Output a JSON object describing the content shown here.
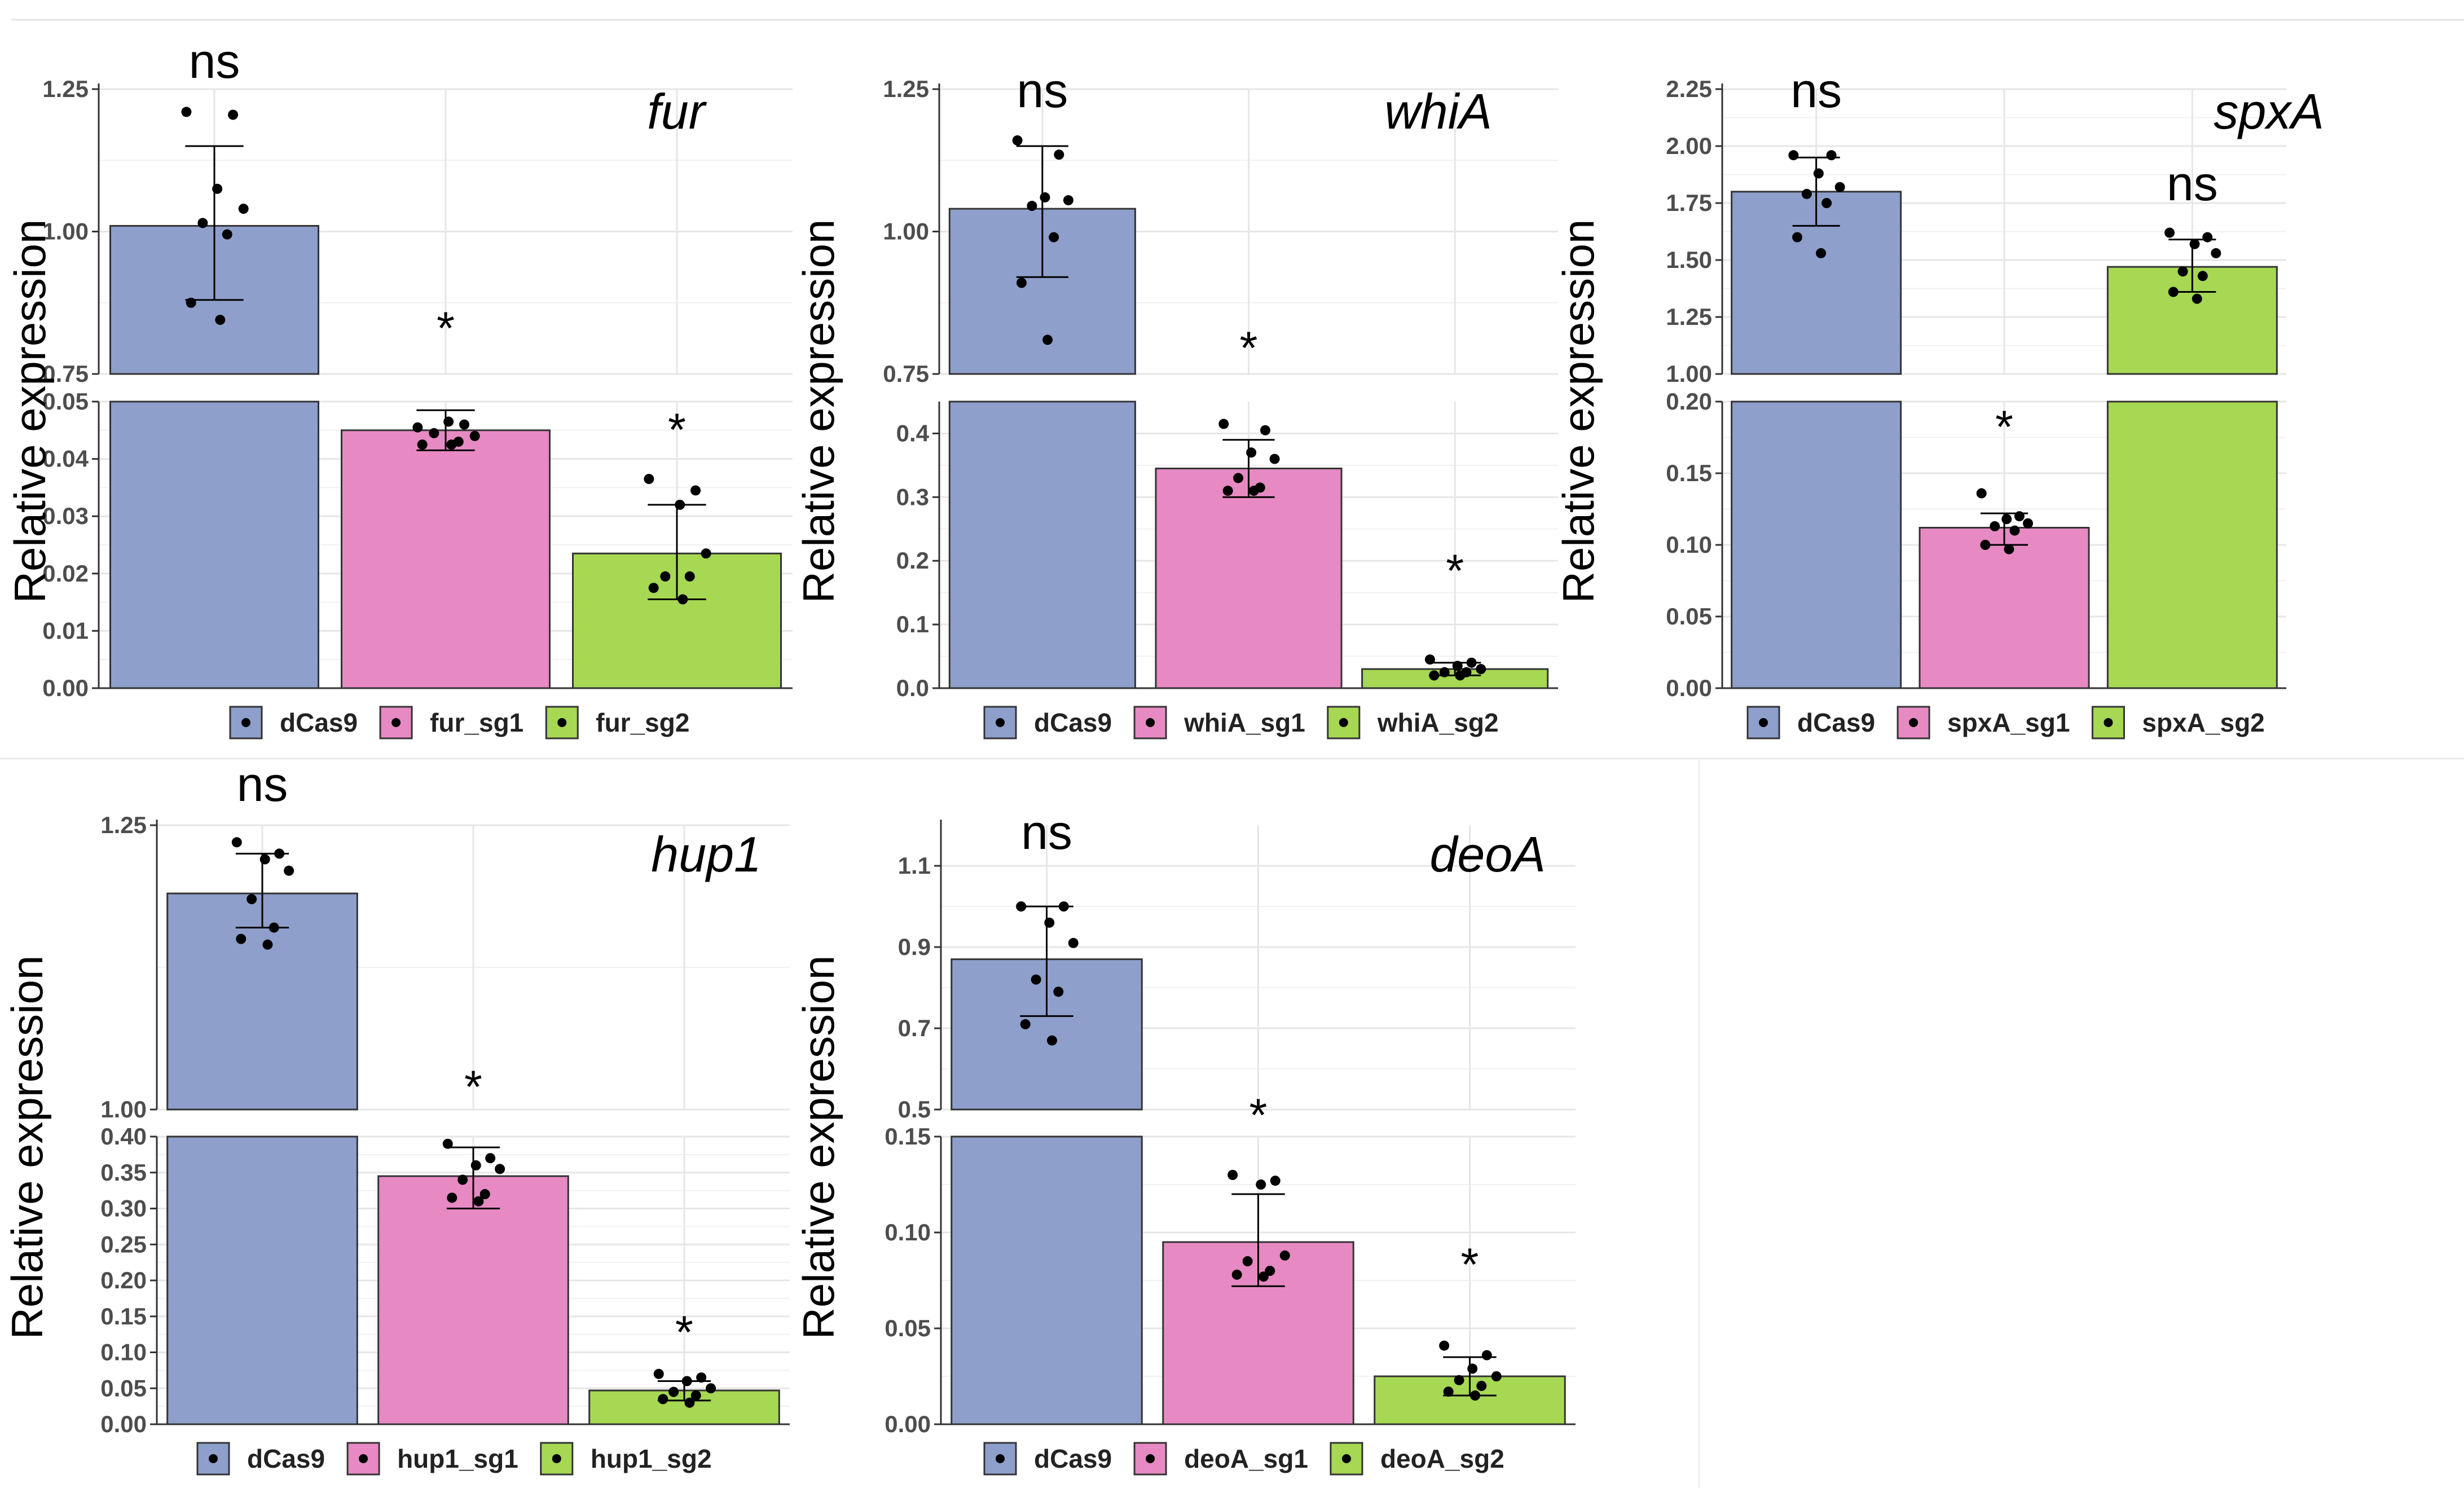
{
  "figure": {
    "ylabel": "Relative expression"
  },
  "colors": {
    "dCas9": "#8e9fcb",
    "sg1": "#e78ac3",
    "sg2": "#a6d853",
    "grid": "#e6e6e6",
    "axis": "#333333",
    "point": "#000000"
  },
  "chart_data": [
    {
      "type": "bar",
      "gene": "fur",
      "categories": [
        "dCas9",
        "fur_sg1",
        "fur_sg2"
      ],
      "values": [
        1.01,
        0.045,
        0.0235
      ],
      "error": [
        [
          0.88,
          1.15
        ],
        [
          0.0415,
          0.0485
        ],
        [
          0.0155,
          0.032
        ]
      ],
      "significance": [
        "ns",
        "*",
        "*"
      ],
      "points": [
        [
          1.21,
          1.205,
          1.075,
          1.04,
          1.015,
          0.995,
          0.875,
          0.845
        ],
        [
          0.0455,
          0.046,
          0.0465,
          0.044,
          0.0445,
          0.043,
          0.0425,
          0.0425
        ],
        [
          0.0365,
          0.0345,
          0.032,
          0.0235,
          0.0195,
          0.0195,
          0.0175,
          0.0155
        ]
      ],
      "upper": {
        "ylim": [
          0.75,
          1.25
        ],
        "ticks": [
          0.75,
          1.0,
          1.25
        ],
        "tick_labels": [
          "0.75",
          "1.00",
          "1.25"
        ]
      },
      "lower": {
        "ylim": [
          0.0,
          0.05
        ],
        "ticks": [
          0.0,
          0.01,
          0.02,
          0.03,
          0.04,
          0.05
        ],
        "tick_labels": [
          "0.00",
          "0.01",
          "0.02",
          "0.03",
          "0.04",
          "0.05"
        ]
      },
      "ylabel": "Relative expression",
      "legend": [
        "dCas9",
        "fur_sg1",
        "fur_sg2"
      ]
    },
    {
      "type": "bar",
      "gene": "whiA",
      "categories": [
        "dCas9",
        "whiA_sg1",
        "whiA_sg2"
      ],
      "values": [
        1.04,
        0.345,
        0.03
      ],
      "error": [
        [
          0.92,
          1.15
        ],
        [
          0.3,
          0.39
        ],
        [
          0.02,
          0.04
        ]
      ],
      "significance": [
        "ns",
        "*",
        "*"
      ],
      "points": [
        [
          1.16,
          1.135,
          1.06,
          1.055,
          1.045,
          0.99,
          0.91,
          0.81
        ],
        [
          0.415,
          0.405,
          0.37,
          0.36,
          0.33,
          0.315,
          0.31,
          0.31
        ],
        [
          0.045,
          0.04,
          0.035,
          0.03,
          0.025,
          0.025,
          0.02,
          0.02
        ]
      ],
      "upper": {
        "ylim": [
          0.75,
          1.25
        ],
        "ticks": [
          0.75,
          1.0,
          1.25
        ],
        "tick_labels": [
          "0.75",
          "1.00",
          "1.25"
        ]
      },
      "lower": {
        "ylim": [
          0.0,
          0.45
        ],
        "ticks": [
          0.0,
          0.1,
          0.2,
          0.3,
          0.4
        ],
        "tick_labels": [
          "0.0",
          "0.1",
          "0.2",
          "0.3",
          "0.4"
        ]
      },
      "ylabel": "Relative expression",
      "legend": [
        "dCas9",
        "whiA_sg1",
        "whiA_sg2"
      ]
    },
    {
      "type": "bar",
      "gene": "spxA",
      "categories": [
        "dCas9",
        "spxA_sg1",
        "spxA_sg2"
      ],
      "values": [
        1.8,
        0.112,
        1.47
      ],
      "error": [
        [
          1.65,
          1.95
        ],
        [
          0.1,
          0.122
        ],
        [
          1.36,
          1.59
        ]
      ],
      "significance": [
        "ns",
        "*",
        "ns"
      ],
      "points": [
        [
          1.96,
          1.96,
          1.88,
          1.82,
          1.79,
          1.75,
          1.6,
          1.53
        ],
        [
          0.136,
          0.12,
          0.118,
          0.115,
          0.113,
          0.11,
          0.1,
          0.097
        ],
        [
          1.62,
          1.6,
          1.57,
          1.53,
          1.45,
          1.43,
          1.36,
          1.33
        ]
      ],
      "upper": {
        "ylim": [
          1.0,
          2.25
        ],
        "ticks": [
          1.0,
          1.25,
          1.5,
          1.75,
          2.0,
          2.25
        ],
        "tick_labels": [
          "1.00",
          "1.25",
          "1.50",
          "1.75",
          "2.00",
          "2.25"
        ]
      },
      "lower": {
        "ylim": [
          0.0,
          0.2
        ],
        "ticks": [
          0.0,
          0.05,
          0.1,
          0.15,
          0.2
        ],
        "tick_labels": [
          "0.00",
          "0.05",
          "0.10",
          "0.15",
          "0.20"
        ]
      },
      "ylabel": "Relative expression",
      "legend": [
        "dCas9",
        "spxA_sg1",
        "spxA_sg2"
      ]
    },
    {
      "type": "bar",
      "gene": "hup1",
      "categories": [
        "dCas9",
        "hup1_sg1",
        "hup1_sg2"
      ],
      "values": [
        1.19,
        0.345,
        0.047
      ],
      "error": [
        [
          1.16,
          1.225
        ],
        [
          0.3,
          0.385
        ],
        [
          0.033,
          0.06
        ]
      ],
      "significance": [
        "ns",
        "*",
        "*"
      ],
      "points": [
        [
          1.235,
          1.225,
          1.22,
          1.21,
          1.185,
          1.16,
          1.15,
          1.145
        ],
        [
          0.39,
          0.37,
          0.36,
          0.355,
          0.34,
          0.32,
          0.315,
          0.31
        ],
        [
          0.07,
          0.065,
          0.06,
          0.05,
          0.045,
          0.04,
          0.035,
          0.03
        ]
      ],
      "upper": {
        "ylim": [
          1.0,
          1.25
        ],
        "ticks": [
          1.0,
          1.25
        ],
        "tick_labels": [
          "1.00",
          "1.25"
        ]
      },
      "lower": {
        "ylim": [
          0.0,
          0.4
        ],
        "ticks": [
          0.0,
          0.05,
          0.1,
          0.15,
          0.2,
          0.25,
          0.3,
          0.35,
          0.4
        ],
        "tick_labels": [
          "0.00",
          "0.05",
          "0.10",
          "0.15",
          "0.20",
          "0.25",
          "0.30",
          "0.35",
          "0.40"
        ]
      },
      "ylabel": "Relative expression",
      "legend": [
        "dCas9",
        "hup1_sg1",
        "hup1_sg2"
      ]
    },
    {
      "type": "bar",
      "gene": "deoA",
      "categories": [
        "dCas9",
        "deoA_sg1",
        "deoA_sg2"
      ],
      "values": [
        0.87,
        0.095,
        0.025
      ],
      "error": [
        [
          0.73,
          1.0
        ],
        [
          0.072,
          0.12
        ],
        [
          0.015,
          0.035
        ]
      ],
      "significance": [
        "ns",
        "*",
        "*"
      ],
      "points": [
        [
          1.0,
          1.0,
          0.96,
          0.91,
          0.82,
          0.79,
          0.71,
          0.67
        ],
        [
          0.13,
          0.127,
          0.125,
          0.088,
          0.085,
          0.08,
          0.078,
          0.077
        ],
        [
          0.041,
          0.036,
          0.029,
          0.025,
          0.023,
          0.02,
          0.017,
          0.015
        ]
      ],
      "upper": {
        "ylim": [
          0.5,
          1.2
        ],
        "ticks": [
          0.5,
          0.7,
          0.9,
          1.1
        ],
        "tick_labels": [
          "0.5",
          "0.7",
          "0.9",
          "1.1"
        ]
      },
      "lower": {
        "ylim": [
          0.0,
          0.15
        ],
        "ticks": [
          0.0,
          0.05,
          0.1,
          0.15
        ],
        "tick_labels": [
          "0.00",
          "0.05",
          "0.10",
          "0.15"
        ]
      },
      "ylabel": "Relative expression",
      "legend": [
        "dCas9",
        "deoA_sg1",
        "deoA_sg2"
      ]
    }
  ]
}
